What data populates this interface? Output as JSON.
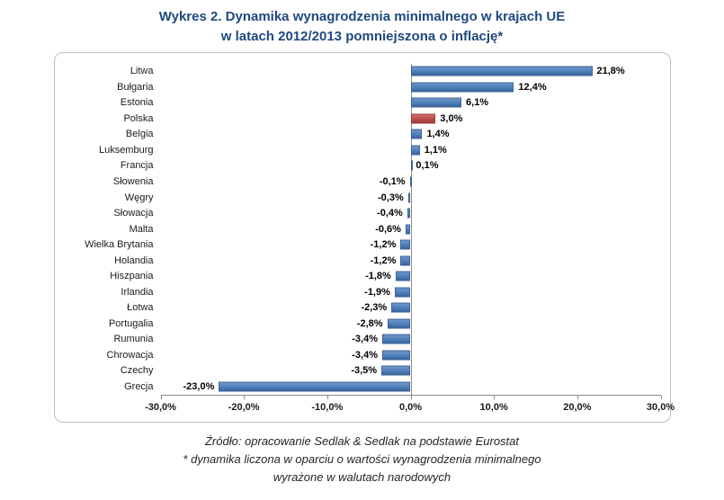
{
  "title": {
    "line1": "Wykres 2. Dynamika wynagrodzenia minimalnego w krajach UE",
    "line2": "w latach 2012/2013 pomniejszona o inflację*"
  },
  "chart_data": {
    "type": "bar",
    "orientation": "horizontal",
    "title": "Wykres 2. Dynamika wynagrodzenia minimalnego w krajach UE w latach 2012/2013 pomniejszona o inflację*",
    "categories": [
      "Litwa",
      "Bułgaria",
      "Estonia",
      "Polska",
      "Belgia",
      "Luksemburg",
      "Francja",
      "Słowenia",
      "Węgry",
      "Słowacja",
      "Malta",
      "Wielka Brytania",
      "Holandia",
      "Hiszpania",
      "Irlandia",
      "Łotwa",
      "Portugalia",
      "Rumunia",
      "Chrowacja",
      "Czechy",
      "Grecja"
    ],
    "values": [
      21.8,
      12.4,
      6.1,
      3.0,
      1.4,
      1.1,
      0.1,
      -0.1,
      -0.3,
      -0.4,
      -0.6,
      -1.2,
      -1.2,
      -1.8,
      -1.9,
      -2.3,
      -2.8,
      -3.4,
      -3.4,
      -3.5,
      -23.0
    ],
    "labels": [
      "21,8%",
      "12,4%",
      "6,1%",
      "3,0%",
      "1,4%",
      "1,1%",
      "0,1%",
      "-0,1%",
      "-0,3%",
      "-0,4%",
      "-0,6%",
      "-1,2%",
      "-1,2%",
      "-1,8%",
      "-1,9%",
      "-2,3%",
      "-2,8%",
      "-3,4%",
      "-3,4%",
      "-3,5%",
      "-23,0%"
    ],
    "bar_color": "#4F81BD",
    "highlight_category": "Polska",
    "highlight_color": "#C0504D",
    "xlim": [
      -30,
      30
    ],
    "x_tick_values": [
      -30,
      -20,
      -10,
      0,
      10,
      20,
      30
    ],
    "x_ticks": [
      "-30,0%",
      "-20,0%",
      "-10,0%",
      "0,0%",
      "10,0%",
      "20,0%",
      "30,0%"
    ],
    "grid": false,
    "legend": "none"
  },
  "footer": {
    "line1": "Źródło: opracowanie Sedlak & Sedlak na podstawie Eurostat",
    "line2": "* dynamika liczona w oparciu o wartości wynagrodzenia minimalnego",
    "line3": "wyrażone w walutach narodowych"
  }
}
